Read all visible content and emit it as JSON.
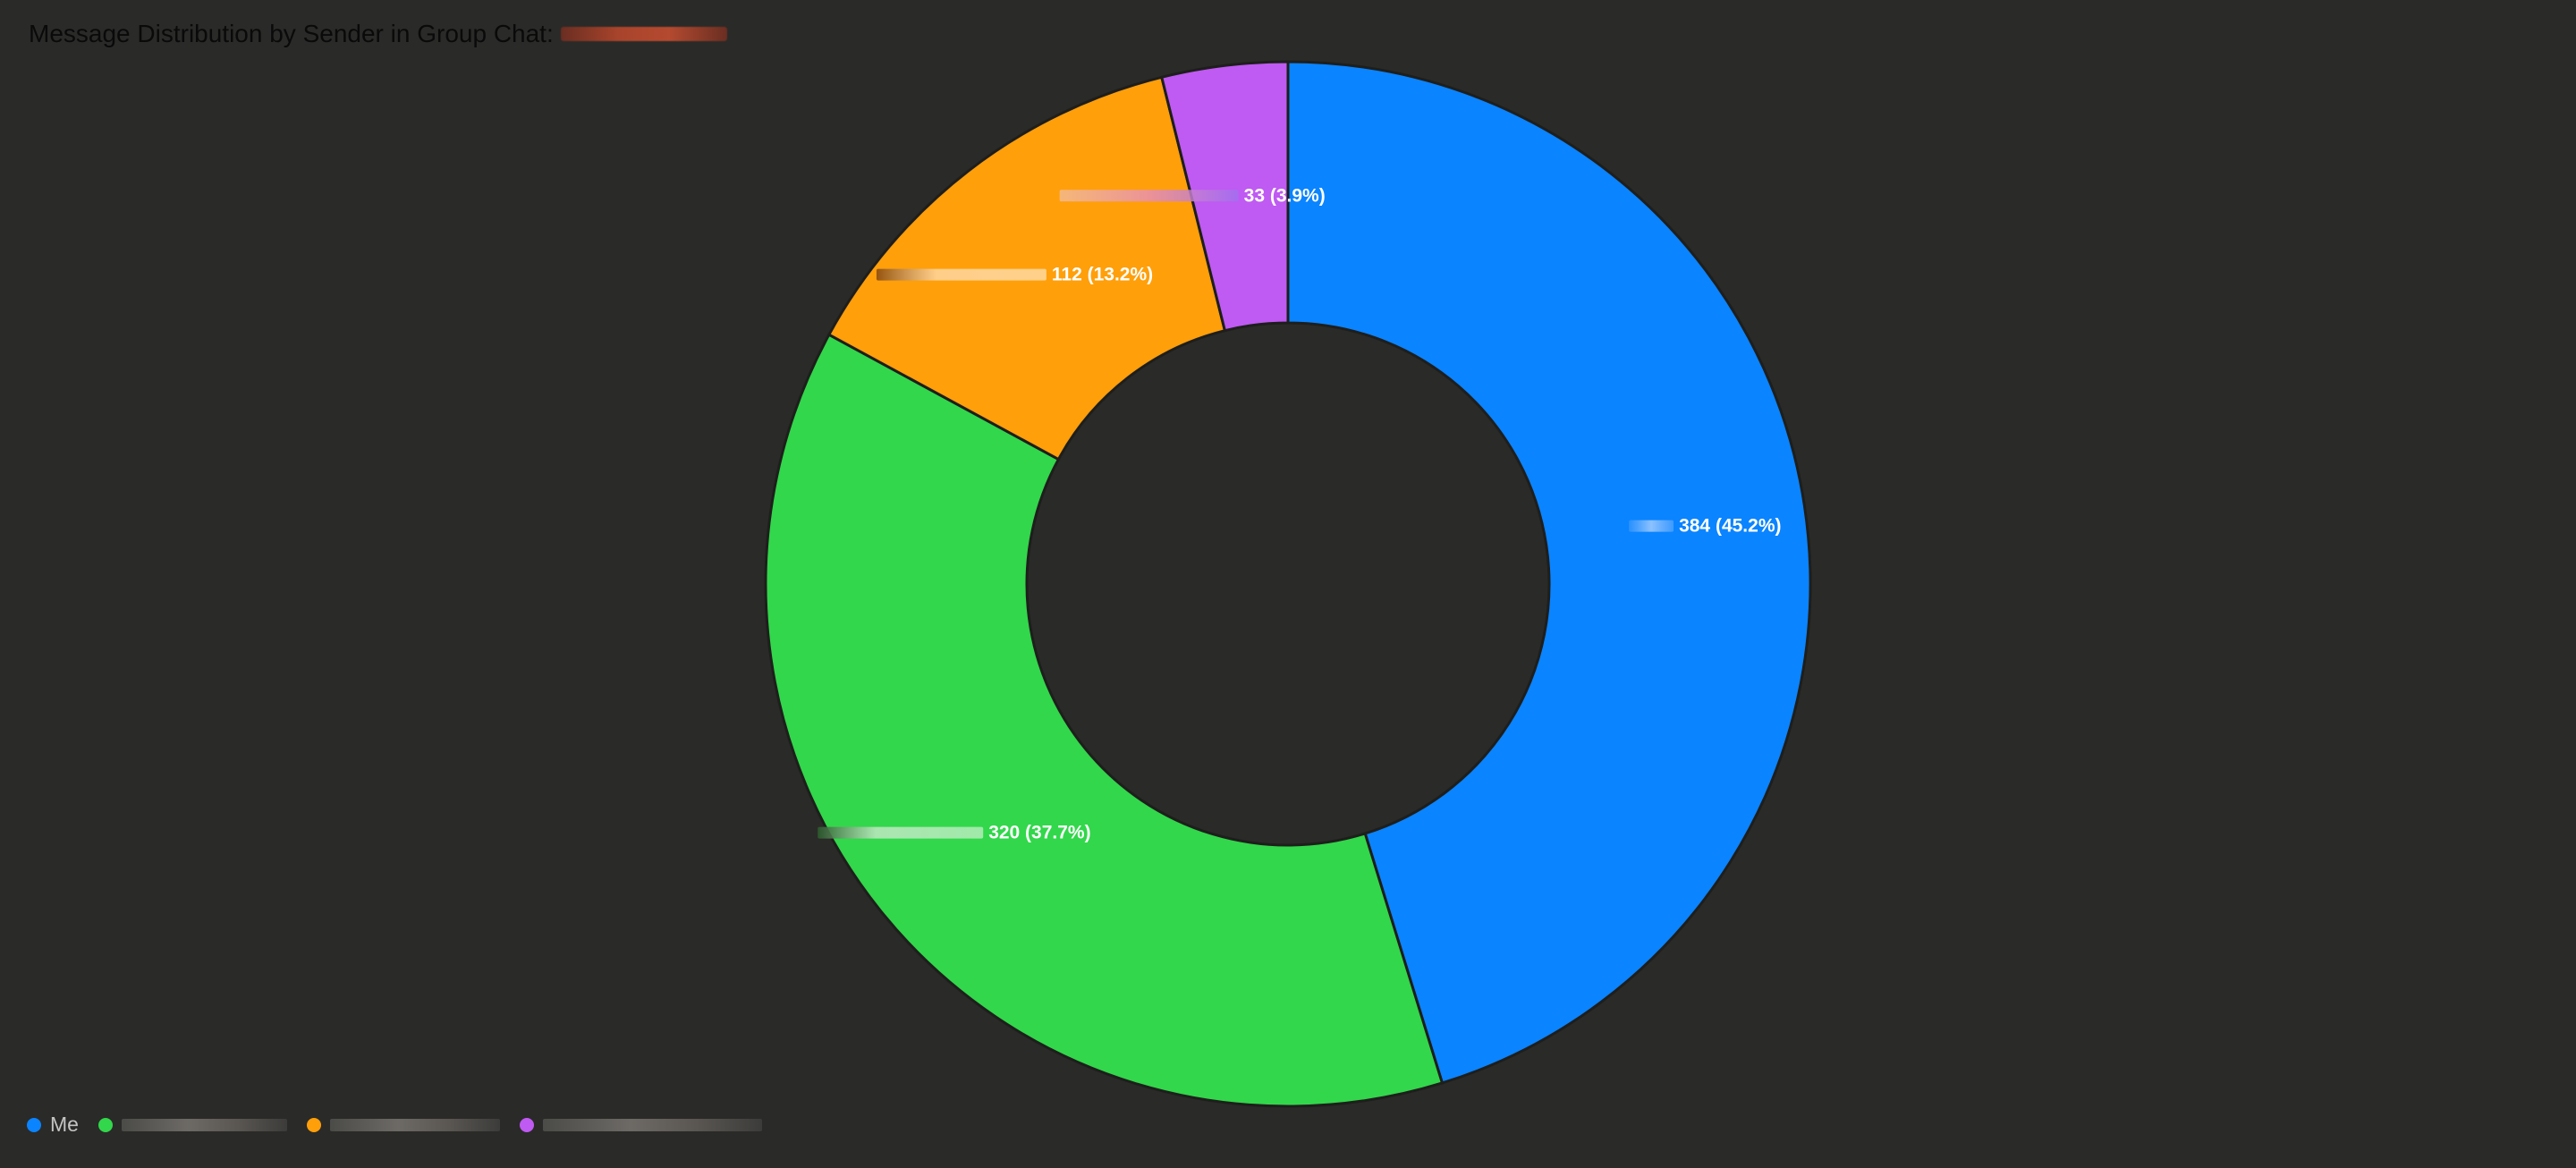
{
  "title": "Message Distribution by Sender in Group Chat:",
  "chart_data": {
    "type": "pie",
    "donut": true,
    "title": "Message Distribution by Sender in Group Chat:",
    "legend_position": "bottom-left",
    "slices": [
      {
        "name": "Me",
        "value": 384,
        "label": "384 (45.2%)",
        "color": "#0a84ff"
      },
      {
        "name": "",
        "value": 320,
        "label": "320 (37.7%)",
        "color": "#32d74b"
      },
      {
        "name": "",
        "value": 112,
        "label": "112 (13.2%)",
        "color": "#ff9f0a"
      },
      {
        "name": "",
        "value": 33,
        "label": "33 (3.9%)",
        "color": "#bf5af2"
      }
    ]
  }
}
